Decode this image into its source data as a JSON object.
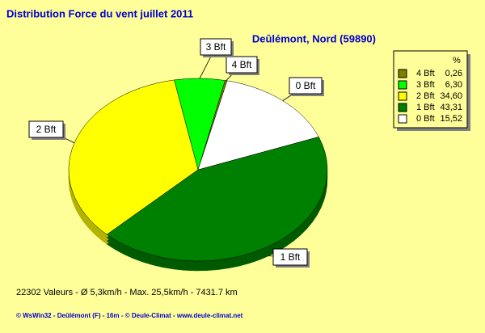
{
  "chart_data": {
    "type": "pie",
    "title": "Distribution Force du vent  juillet 2011",
    "subtitle": "Deûlémont, Nord (59890)",
    "legend_header": "%",
    "categories": [
      "4 Bft",
      "3 Bft",
      "2 Bft",
      "1 Bft",
      "0 Bft"
    ],
    "values": [
      0.26,
      6.3,
      34.6,
      43.31,
      15.52
    ],
    "value_labels": [
      "0,26",
      "6,30",
      "34,60",
      "43,31",
      "15,52"
    ],
    "colors": [
      "#808000",
      "#00ff00",
      "#ffff00",
      "#008000",
      "#ffffff"
    ]
  },
  "footer": [
    "22302 Valeurs   -   Ø 5,3km/h  -  Max. 25,5km/h  -   7431.7 km",
    "© WsWin32  -  Deûlémont (F) - 16m  -  © Deule-Climat - www.deule-climat.net"
  ]
}
